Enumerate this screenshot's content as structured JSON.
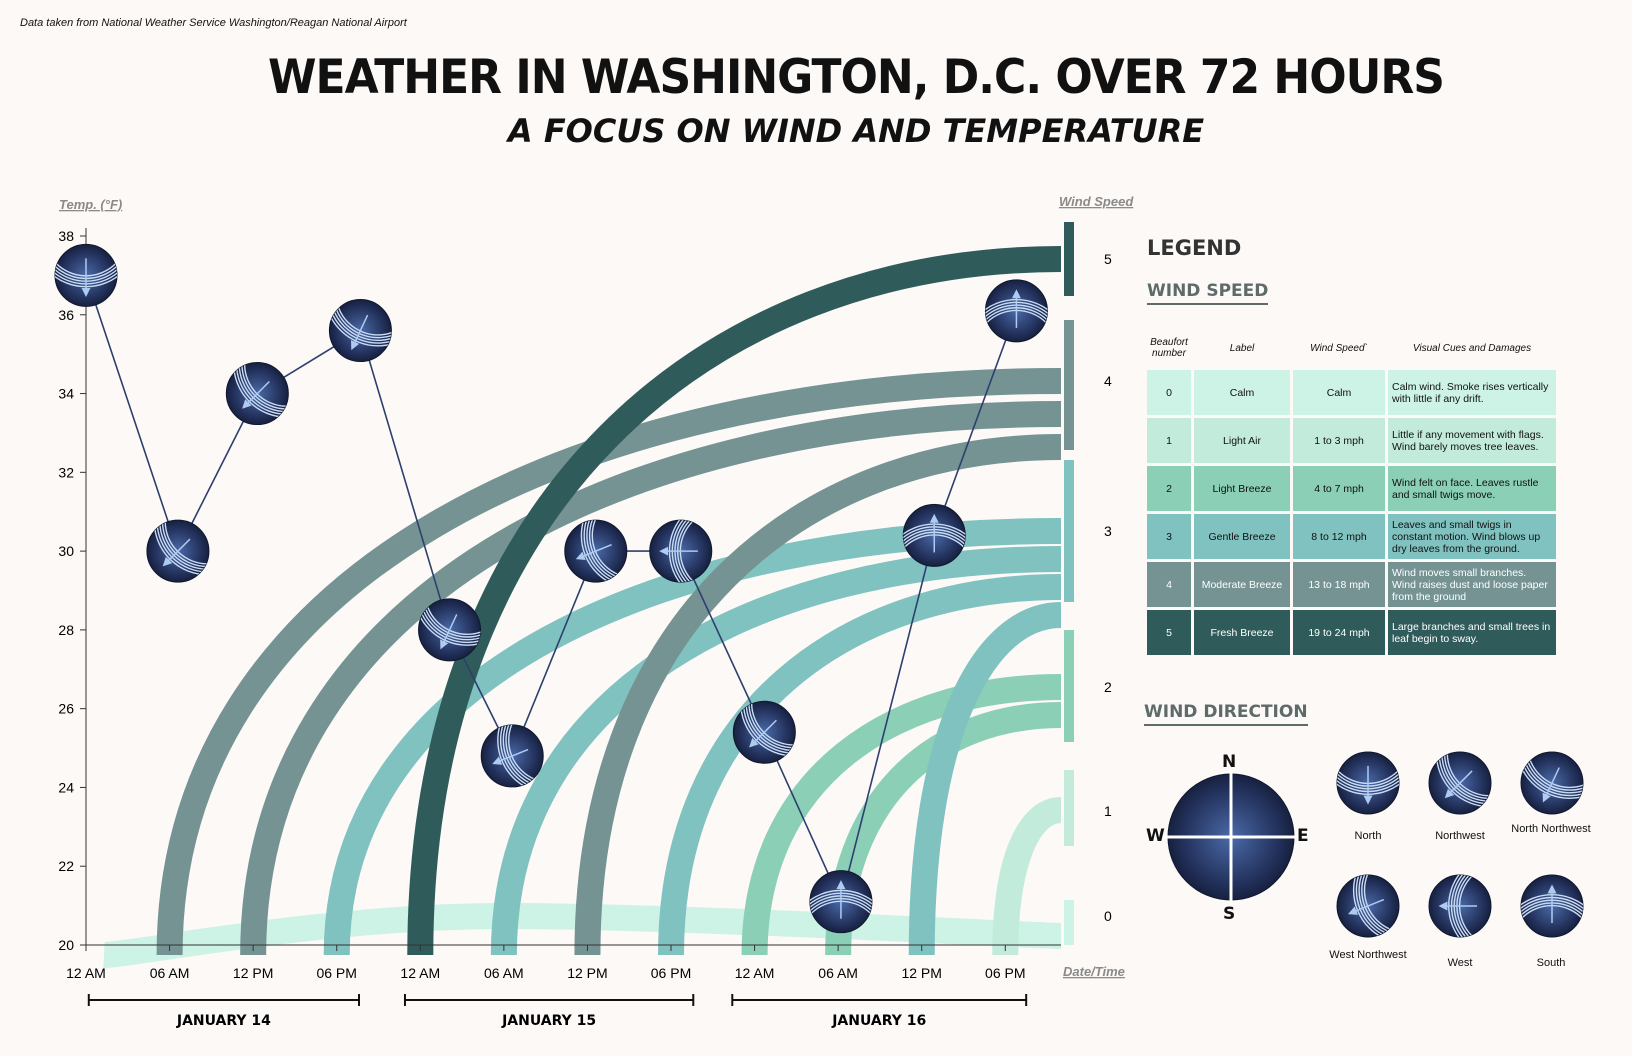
{
  "source_note": "Data taken from National Weather Service Washington/Reagan National Airport",
  "title": "WEATHER IN WASHINGTON, D.C. OVER 72 HOURS",
  "subtitle": "A FOCUS ON WIND AND TEMPERATURE",
  "colors": {
    "beaufort": [
      "#cdf2e6",
      "#c2ebdc",
      "#8acfb6",
      "#80c2c0",
      "#759393",
      "#2f5c5b"
    ],
    "marker_dark": "#1a2440",
    "marker_light": "#4a6aa8",
    "line": "#2e3f6e",
    "background": "#fcf9f7"
  },
  "chart_data": {
    "type": "line",
    "title": "WEATHER IN WASHINGTON, D.C. OVER 72 HOURS",
    "ylabel": "Temp. (°F)",
    "y2label": "Wind Speed",
    "xlabel": "Date/Time",
    "ylim": [
      20,
      38
    ],
    "y_ticks": [
      20,
      22,
      24,
      26,
      28,
      30,
      32,
      34,
      36,
      38
    ],
    "y2_ticks": [
      0,
      1,
      2,
      3,
      4,
      5
    ],
    "xlim_hours": [
      0,
      70
    ],
    "x_ticks": [
      {
        "h": 0,
        "label": "12 AM"
      },
      {
        "h": 6,
        "label": "06 AM"
      },
      {
        "h": 12,
        "label": "12 PM"
      },
      {
        "h": 18,
        "label": "06 PM"
      },
      {
        "h": 24,
        "label": "12 AM"
      },
      {
        "h": 30,
        "label": "06 AM"
      },
      {
        "h": 36,
        "label": "12 PM"
      },
      {
        "h": 42,
        "label": "06 PM"
      },
      {
        "h": 48,
        "label": "12 AM"
      },
      {
        "h": 54,
        "label": "06 AM"
      },
      {
        "h": 60,
        "label": "12 PM"
      },
      {
        "h": 66,
        "label": "06 PM"
      }
    ],
    "days": [
      {
        "label": "JANUARY 14",
        "start_h": 0.2,
        "end_h": 19.6
      },
      {
        "label": "JANUARY 15",
        "start_h": 22.9,
        "end_h": 43.6
      },
      {
        "label": "JANUARY 16",
        "start_h": 46.4,
        "end_h": 67.5
      }
    ],
    "temperature_series": [
      {
        "h": 0,
        "temp": 37.0,
        "direction": "North"
      },
      {
        "h": 6.6,
        "temp": 30.0,
        "direction": "Northwest"
      },
      {
        "h": 12.3,
        "temp": 34.0,
        "direction": "Northwest"
      },
      {
        "h": 19.7,
        "temp": 35.6,
        "direction": "North Northwest"
      },
      {
        "h": 26.1,
        "temp": 28.0,
        "direction": "North Northwest"
      },
      {
        "h": 30.6,
        "temp": 24.8,
        "direction": "West Northwest"
      },
      {
        "h": 36.6,
        "temp": 30.0,
        "direction": "West Northwest"
      },
      {
        "h": 42.7,
        "temp": 30.0,
        "direction": "West"
      },
      {
        "h": 48.7,
        "temp": 25.4,
        "direction": "Northwest"
      },
      {
        "h": 54.2,
        "temp": 21.1,
        "direction": "South"
      },
      {
        "h": 60.9,
        "temp": 30.4,
        "direction": "South"
      },
      {
        "h": 66.8,
        "temp": 36.1,
        "direction": "South"
      }
    ],
    "wind_arcs": [
      {
        "start_h": 0,
        "beaufort": 0,
        "band": 0
      },
      {
        "start_h": 6,
        "beaufort": 4,
        "band": 0
      },
      {
        "start_h": 12,
        "beaufort": 4,
        "band": 1
      },
      {
        "start_h": 18,
        "beaufort": 3,
        "band": 0
      },
      {
        "start_h": 24,
        "beaufort": 5,
        "band": 0
      },
      {
        "start_h": 30,
        "beaufort": 3,
        "band": 1
      },
      {
        "start_h": 36,
        "beaufort": 4,
        "band": 2
      },
      {
        "start_h": 42,
        "beaufort": 3,
        "band": 2
      },
      {
        "start_h": 48,
        "beaufort": 2,
        "band": 0
      },
      {
        "start_h": 54,
        "beaufort": 2,
        "band": 1
      },
      {
        "start_h": 60,
        "beaufort": 3,
        "band": 3
      },
      {
        "start_h": 66,
        "beaufort": 1,
        "band": 0
      }
    ]
  },
  "legend": {
    "title": "LEGEND",
    "wind_speed_heading": "WIND SPEED",
    "columns": [
      "Beaufort number",
      "Label",
      "Wind Speed`",
      "Visual Cues and Damages"
    ],
    "rows": [
      {
        "num": "0",
        "label": "Calm",
        "speed": "Calm",
        "cue": "Calm wind. Smoke rises vertically with little if any drift."
      },
      {
        "num": "1",
        "label": "Light Air",
        "speed": "1 to 3 mph",
        "cue": "Little if any movement with flags. Wind barely moves tree leaves."
      },
      {
        "num": "2",
        "label": "Light Breeze",
        "speed": "4 to 7 mph",
        "cue": "Wind felt on face. Leaves rustle and small twigs move."
      },
      {
        "num": "3",
        "label": "Gentle Breeze",
        "speed": "8 to 12 mph",
        "cue": "Leaves and small twigs in constant motion. Wind blows up dry leaves from the ground."
      },
      {
        "num": "4",
        "label": "Moderate Breeze",
        "speed": "13 to 18 mph",
        "cue": "Wind moves small branches. Wind raises dust and loose paper from the ground"
      },
      {
        "num": "5",
        "label": "Fresh Breeze",
        "speed": "19 to 24 mph",
        "cue": "Large branches and small trees in leaf begin to sway."
      }
    ],
    "wind_direction_heading": "WIND DIRECTION",
    "compass": {
      "n": "N",
      "s": "S",
      "e": "E",
      "w": "W"
    },
    "directions": [
      "North",
      "Northwest",
      "North Northwest",
      "West Northwest",
      "West",
      "South"
    ]
  }
}
